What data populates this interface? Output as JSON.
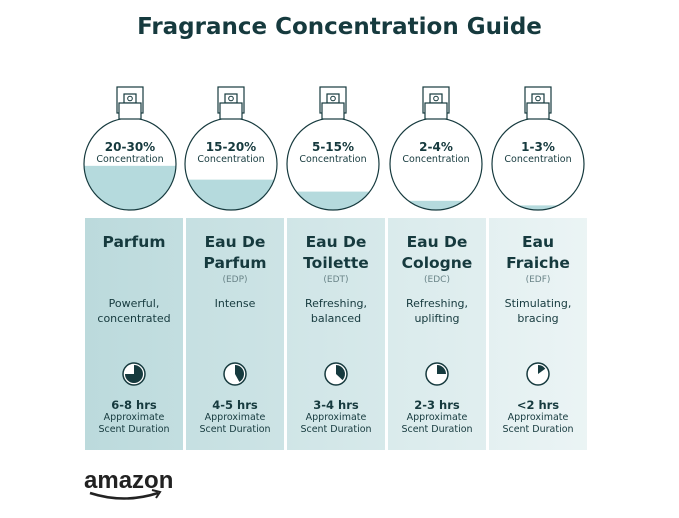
{
  "title": "Fragrance Concentration Guide",
  "concentration_label": "Concentration",
  "duration_label_1": "Approximate",
  "duration_label_2": "Scent Duration",
  "logo": "amazon",
  "colors": {
    "text": "#163a3e",
    "liquid": "#b5dadd",
    "column_start": "#bcdcdd",
    "column_end": "#eef6f7"
  },
  "types": [
    {
      "name1": "Parfum",
      "name2": "",
      "abbr": "",
      "concentration": "20-30%",
      "fill": 0.48,
      "desc1": "Powerful,",
      "desc2": "concentrated",
      "duration": "6-8 hrs",
      "clock_fraction": 0.75
    },
    {
      "name1": "Eau De",
      "name2": "Parfum",
      "abbr": "(EDP)",
      "concentration": "15-20%",
      "fill": 0.33,
      "desc1": "Intense",
      "desc2": "",
      "duration": "4-5 hrs",
      "clock_fraction": 0.42
    },
    {
      "name1": "Eau De",
      "name2": "Toilette",
      "abbr": "(EDT)",
      "concentration": "5-15%",
      "fill": 0.2,
      "desc1": "Refreshing,",
      "desc2": "balanced",
      "duration": "3-4 hrs",
      "clock_fraction": 0.37
    },
    {
      "name1": "Eau De",
      "name2": "Cologne",
      "abbr": "(EDC)",
      "concentration": "2-4%",
      "fill": 0.1,
      "desc1": "Refreshing,",
      "desc2": "uplifting",
      "duration": "2-3 hrs",
      "clock_fraction": 0.25
    },
    {
      "name1": "Eau",
      "name2": "Fraiche",
      "abbr": "(EDF)",
      "concentration": "1-3%",
      "fill": 0.05,
      "desc1": "Stimulating,",
      "desc2": "bracing",
      "duration": "<2 hrs",
      "clock_fraction": 0.15
    }
  ]
}
